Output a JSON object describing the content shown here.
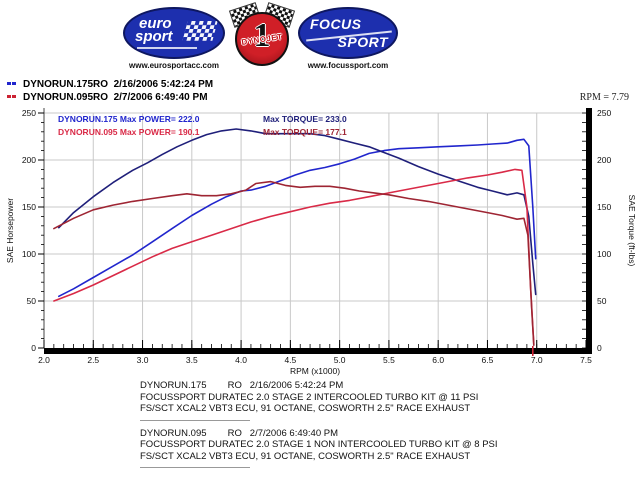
{
  "header": {
    "logos": {
      "eurosport": {
        "text1": "euro",
        "text2": "sport",
        "website": "www.eurosportacc.com"
      },
      "dynojet": {
        "symbol": "1",
        "name": "DYNOJET"
      },
      "focussport": {
        "text1": "FOCUS",
        "text2": "SPORT",
        "website": "www.focussport.com"
      }
    }
  },
  "legend": {
    "runs": [
      {
        "label": "DYNORUN.175RO  2/16/2006 5:42:24 PM",
        "color": "#2126cd"
      },
      {
        "label": "DYNORUN.095RO  2/7/2006 6:49:40 PM",
        "color": "#cc2233"
      }
    ]
  },
  "rpm_readout": "RPM = 7.79",
  "chart_data": {
    "type": "line",
    "xlabel": "RPM (x1000)",
    "ylabel_left": "SAE Horsepower",
    "ylabel_right": "SAE Torque (ft-lbs)",
    "xlim": [
      2.0,
      7.5
    ],
    "ylim": [
      0,
      250
    ],
    "x_major_step": 0.5,
    "x_minor_step": 0.1,
    "y_major_step": 50,
    "y_minor_step": 10,
    "grid": true,
    "cursor_marker": {
      "x": 6.96,
      "color": "#cc2233"
    },
    "annotations": [
      {
        "text": "DYNORUN.175  Max POWER= 222.0",
        "color": "#2126cd"
      },
      {
        "text": "DYNORUN.095  Max POWER= 190.1",
        "color": "#d92a47"
      },
      {
        "text": "Max TORQUE= 233.0",
        "color": "#1f1f7a"
      },
      {
        "text": "Max TORQUE= 177.1",
        "color": "#9e2533"
      }
    ],
    "series": [
      {
        "name": "DYNORUN.175 Horsepower",
        "color": "#2126cd",
        "x": [
          2.15,
          2.3,
          2.5,
          2.7,
          2.9,
          3.1,
          3.3,
          3.5,
          3.7,
          3.85,
          4.0,
          4.1,
          4.25,
          4.4,
          4.55,
          4.7,
          4.85,
          5.0,
          5.15,
          5.3,
          5.45,
          5.6,
          5.8,
          6.0,
          6.2,
          6.4,
          6.55,
          6.7,
          6.8,
          6.87,
          6.92,
          6.96,
          6.99
        ],
        "y": [
          55,
          63,
          75,
          87,
          99,
          113,
          127,
          141,
          153,
          161,
          167,
          168,
          172,
          178,
          184,
          189,
          192,
          196,
          201,
          207,
          210,
          212,
          213,
          214,
          215,
          216,
          217,
          218,
          221,
          222,
          215,
          150,
          95
        ]
      },
      {
        "name": "DYNORUN.175 Torque",
        "color": "#1f1f7a",
        "x": [
          2.15,
          2.3,
          2.5,
          2.7,
          2.9,
          3.05,
          3.2,
          3.35,
          3.5,
          3.65,
          3.8,
          3.95,
          4.1,
          4.25,
          4.4,
          4.55,
          4.7,
          4.85,
          5.0,
          5.15,
          5.3,
          5.45,
          5.6,
          5.8,
          6.0,
          6.2,
          6.4,
          6.55,
          6.7,
          6.8,
          6.87,
          6.92,
          6.96,
          6.99
        ],
        "y": [
          128,
          144,
          161,
          176,
          189,
          197,
          206,
          214,
          221,
          227,
          231,
          233,
          231,
          228,
          228,
          228,
          228,
          226,
          222,
          218,
          214,
          208,
          202,
          193,
          185,
          178,
          171,
          167,
          163,
          165,
          163,
          140,
          90,
          57
        ]
      },
      {
        "name": "DYNORUN.095 Horsepower",
        "color": "#d92a47",
        "x": [
          2.1,
          2.3,
          2.5,
          2.7,
          2.9,
          3.1,
          3.3,
          3.5,
          3.7,
          3.9,
          4.1,
          4.3,
          4.5,
          4.7,
          4.9,
          5.1,
          5.3,
          5.5,
          5.7,
          5.9,
          6.1,
          6.3,
          6.5,
          6.65,
          6.78,
          6.85,
          6.9,
          6.94,
          6.97
        ],
        "y": [
          50,
          58,
          67,
          77,
          87,
          97,
          106,
          113,
          120,
          127,
          134,
          140,
          145,
          150,
          154,
          157,
          161,
          165,
          169,
          173,
          177,
          181,
          184,
          187,
          190,
          189,
          150,
          60,
          4
        ]
      },
      {
        "name": "DYNORUN.095 Torque",
        "color": "#9e2533",
        "x": [
          2.1,
          2.3,
          2.5,
          2.7,
          2.9,
          3.1,
          3.3,
          3.45,
          3.6,
          3.75,
          3.9,
          4.05,
          4.15,
          4.3,
          4.45,
          4.6,
          4.75,
          4.9,
          5.05,
          5.2,
          5.35,
          5.5,
          5.7,
          5.9,
          6.1,
          6.3,
          6.5,
          6.65,
          6.8,
          6.87,
          6.91,
          6.95,
          6.97
        ],
        "y": [
          127,
          138,
          147,
          152,
          156,
          159,
          162,
          164,
          162,
          162,
          164,
          168,
          175,
          177,
          173,
          171,
          172,
          172,
          170,
          167,
          165,
          163,
          159,
          156,
          152,
          148,
          144,
          141,
          137,
          138,
          120,
          40,
          3
        ]
      }
    ]
  },
  "footer": {
    "runs": [
      {
        "title": "DYNORUN.175        RO   2/16/2006 5:42:24 PM",
        "desc1": "FOCUSSPORT DURATEC 2.0 STAGE 2 INTERCOOLED TURBO KIT @ 11 PSI",
        "desc2": "FS/SCT XCAL2 VBT3 ECU, 91 OCTANE, COSWORTH 2.5\" RACE EXHAUST"
      },
      {
        "title": "DYNORUN.095        RO   2/7/2006 6:49:40 PM",
        "desc1": "FOCUSSPORT DURATEC 2.0 STAGE 1 NON INTERCOOLED TURBO KIT @ 8 PSI",
        "desc2": "FS/SCT XCAL2 VBT3 ECU, 91 OCTANE, COSWORTH 2.5\" RACE EXHAUST"
      }
    ]
  }
}
